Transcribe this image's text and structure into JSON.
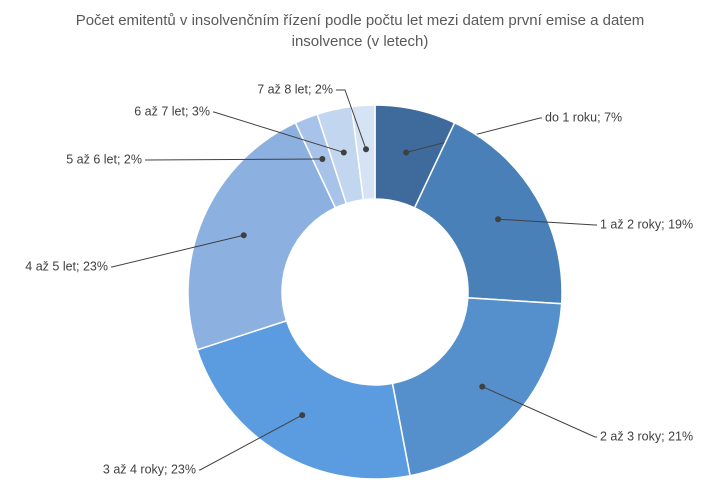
{
  "chart_data": {
    "type": "donut",
    "title": "Počet emitentů v insolvenčním řízení podle počtu let mezi datem první emise a datem insolvence (v letech)",
    "categories": [
      "do 1 roku",
      "1 až 2 roky",
      "2 až 3 roky",
      "3 až 4 roky",
      "4 až 5 let",
      "5 až 6 let",
      "6 až 7 let",
      "7 až 8 let"
    ],
    "values": [
      7,
      19,
      21,
      23,
      23,
      2,
      3,
      2
    ],
    "value_labels": [
      "do 1 roku; 7%",
      "1 až 2 roky; 19%",
      "2 až 3 roky; 21%",
      "3 až 4 roky; 23%",
      "4 až 5 let; 23%",
      "5 až 6 let; 2%",
      "6 až 7 let; 3%",
      "7 až 8 let; 2%"
    ],
    "colors": [
      "#3e6b9b",
      "#4a80b8",
      "#5590cc",
      "#5b9bdf",
      "#8cb1e0",
      "#a7c3e9",
      "#c3d6ef",
      "#d5e3f4"
    ]
  }
}
